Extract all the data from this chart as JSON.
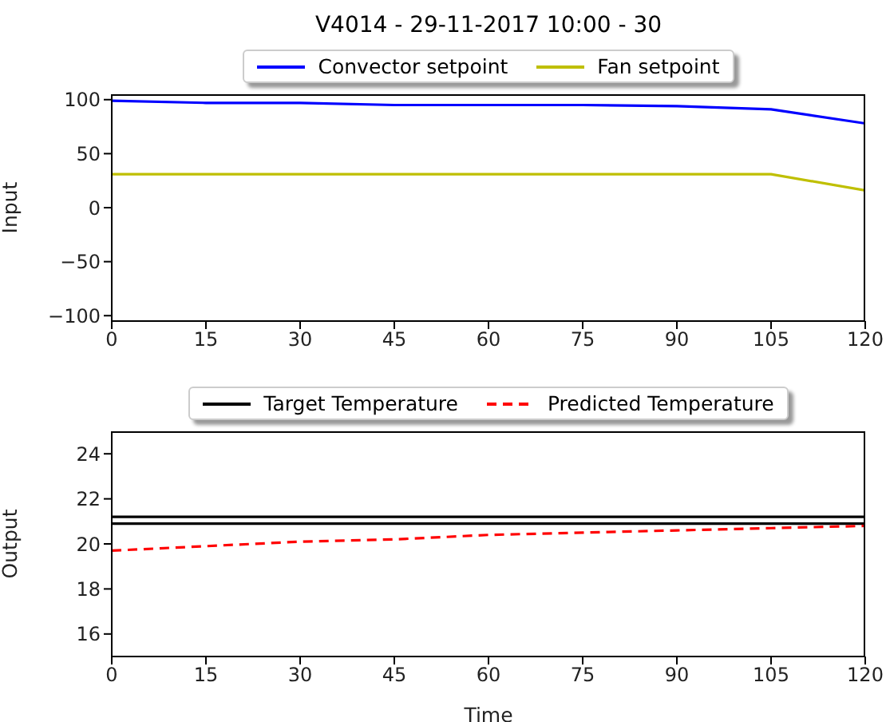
{
  "chart_data": [
    {
      "type": "line",
      "title": "V4014 - 29-11-2017 10:00 - 30",
      "ylabel": "Input",
      "x": [
        0,
        15,
        30,
        45,
        60,
        75,
        90,
        105,
        120
      ],
      "xlim": [
        0,
        120
      ],
      "xticks": [
        0,
        15,
        30,
        45,
        60,
        75,
        90,
        105,
        120
      ],
      "ylim": [
        -105,
        105
      ],
      "yticks": [
        -100,
        -50,
        0,
        50,
        100
      ],
      "legend": "top",
      "grid": false,
      "marker": "none",
      "line_style": "solid",
      "series": [
        {
          "name": "Convector setpoint",
          "color": "#0000ff",
          "values": [
            99,
            97,
            97,
            95,
            95,
            95,
            94,
            91,
            78
          ]
        },
        {
          "name": "Fan setpoint",
          "color": "#bfbf00",
          "values": [
            31,
            31,
            31,
            31,
            31,
            31,
            31,
            31,
            16
          ]
        }
      ]
    },
    {
      "type": "line",
      "xlabel": "Time",
      "ylabel": "Output",
      "x": [
        0,
        15,
        30,
        45,
        60,
        75,
        90,
        105,
        120
      ],
      "xlim": [
        0,
        120
      ],
      "xticks": [
        0,
        15,
        30,
        45,
        60,
        75,
        90,
        105,
        120
      ],
      "ylim": [
        15,
        25
      ],
      "yticks": [
        16,
        18,
        20,
        22,
        24
      ],
      "legend": "top",
      "grid": false,
      "marker": "none",
      "line_style": "solid",
      "series": [
        {
          "name": "Target Temperature",
          "color": "#000000",
          "values": [
            21.2,
            21.2,
            21.2,
            21.2,
            21.2,
            21.2,
            21.2,
            21.2,
            21.2
          ]
        },
        {
          "color": "#000000",
          "values": [
            20.9,
            20.9,
            20.9,
            20.9,
            20.9,
            20.9,
            20.9,
            20.9,
            20.9
          ]
        },
        {
          "name": "Predicted Temperature",
          "color": "#ff0000",
          "line_style": "dashed",
          "values": [
            19.7,
            19.9,
            20.1,
            20.2,
            20.4,
            20.5,
            20.6,
            20.7,
            20.8
          ]
        }
      ]
    }
  ]
}
